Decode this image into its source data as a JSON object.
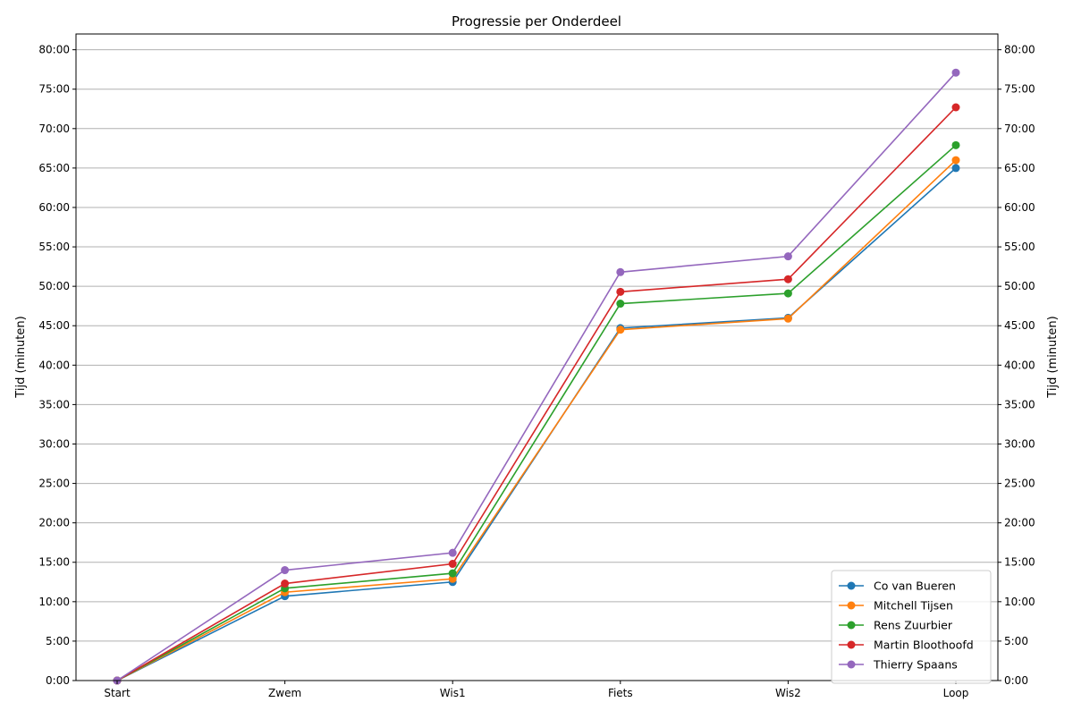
{
  "chart_data": {
    "type": "line",
    "title": "Progressie per Onderdeel",
    "xlabel": "",
    "ylabel_left": "Tijd (minuten)",
    "ylabel_right": "Tijd (minuten)",
    "categories": [
      "Start",
      "Zwem",
      "Wis1",
      "Fiets",
      "Wis2",
      "Loop"
    ],
    "ylim": [
      0,
      82
    ],
    "yticks": [
      0,
      5,
      10,
      15,
      20,
      25,
      30,
      35,
      40,
      45,
      50,
      55,
      60,
      65,
      70,
      75,
      80
    ],
    "ytick_labels": [
      "0:00",
      "5:00",
      "10:00",
      "15:00",
      "20:00",
      "25:00",
      "30:00",
      "35:00",
      "40:00",
      "45:00",
      "50:00",
      "55:00",
      "60:00",
      "65:00",
      "70:00",
      "75:00",
      "80:00"
    ],
    "grid": "horizontal",
    "legend_position": "bottom-right",
    "series": [
      {
        "name": "Co van Bueren",
        "color": "#1f77b4",
        "values": [
          0,
          10.7,
          12.5,
          44.7,
          46.0,
          65.0
        ]
      },
      {
        "name": "Mitchell Tijsen",
        "color": "#ff7f0e",
        "values": [
          0,
          11.2,
          12.9,
          44.5,
          45.9,
          66.0
        ]
      },
      {
        "name": "Rens Zuurbier",
        "color": "#2ca02c",
        "values": [
          0,
          11.7,
          13.6,
          47.8,
          49.1,
          67.9
        ]
      },
      {
        "name": "Martin Bloothoofd",
        "color": "#d62728",
        "values": [
          0,
          12.3,
          14.8,
          49.3,
          50.9,
          72.7
        ]
      },
      {
        "name": "Thierry Spaans",
        "color": "#9467bd",
        "values": [
          0,
          14.0,
          16.2,
          51.8,
          53.8,
          77.1
        ]
      }
    ]
  }
}
